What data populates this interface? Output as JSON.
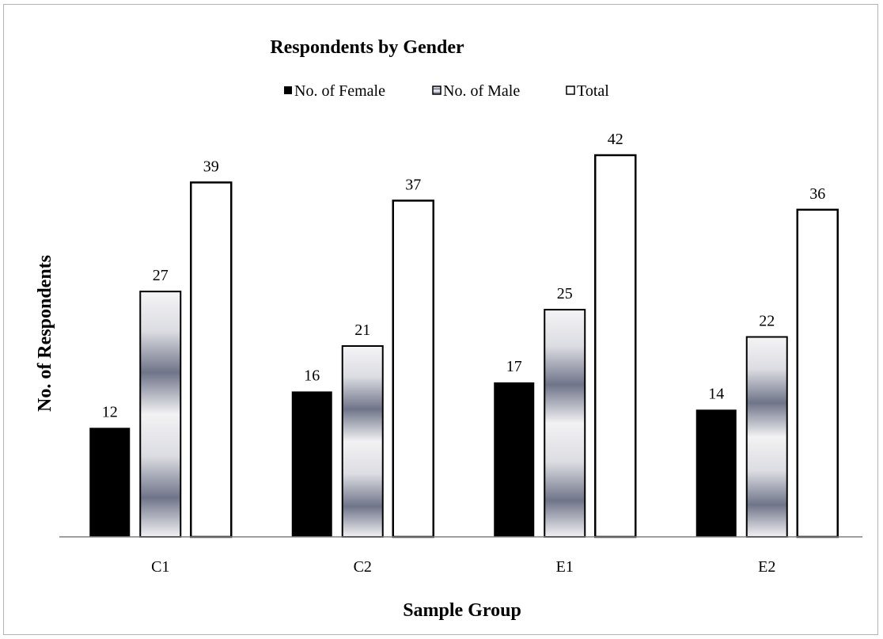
{
  "chart_data": {
    "type": "bar",
    "title": "Respondents by Gender",
    "xlabel": "Sample Group",
    "ylabel": "No. of Respondents",
    "categories": [
      "C1",
      "C2",
      "E1",
      "E2"
    ],
    "series": [
      {
        "name": "No. of Female",
        "values": [
          12,
          16,
          17,
          14
        ],
        "style": "solid-black"
      },
      {
        "name": "No. of Male",
        "values": [
          27,
          21,
          25,
          22
        ],
        "style": "metallic-gradient"
      },
      {
        "name": "Total",
        "values": [
          39,
          37,
          42,
          36
        ],
        "style": "white-outline"
      }
    ],
    "ylim": [
      0,
      42
    ],
    "grid": false,
    "legend_position": "top-center",
    "data_labels": true
  },
  "colors": {
    "female_fill": "#000000",
    "male_gradient_light": "#f2f2f4",
    "male_gradient_dark": "#6c7186",
    "total_fill": "#ffffff",
    "outline": "#000000",
    "frame_border": "#b3b3b3",
    "axis_line": "#808080"
  }
}
